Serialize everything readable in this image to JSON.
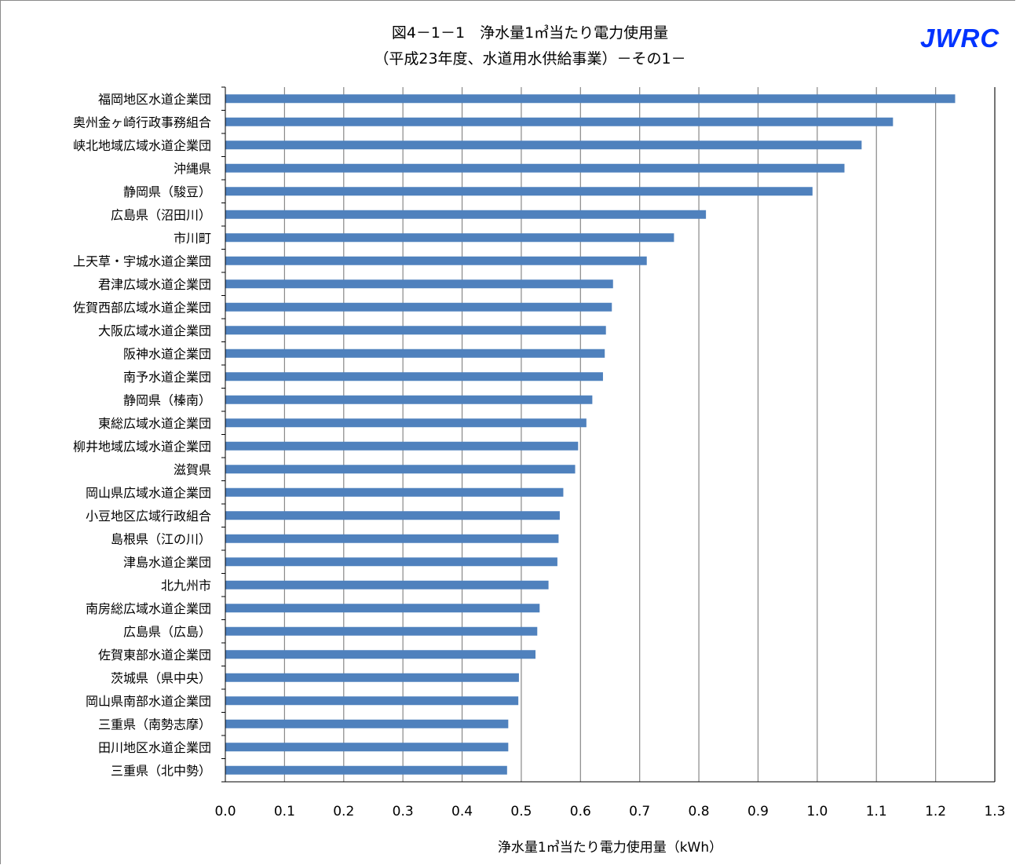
{
  "title_line1": "図4－1－1　浄水量1㎥当たり電力使用量",
  "title_line2": "（平成23年度、水道用水供給事業）－その1－",
  "logo_text": "JWRC",
  "colors": {
    "bar": "#4f81bd",
    "grid": "#888888",
    "logo": "#0033ff"
  },
  "chart_data": {
    "type": "bar",
    "orientation": "horizontal",
    "xlabel": "浄水量1㎥当たり電力使用量（kWh）",
    "ylabel": "",
    "xlim": [
      0,
      1.3
    ],
    "x_ticks": [
      "0.0",
      "0.1",
      "0.2",
      "0.3",
      "0.4",
      "0.5",
      "0.6",
      "0.7",
      "0.8",
      "0.9",
      "1.0",
      "1.1",
      "1.2",
      "1.3"
    ],
    "grid": "vertical",
    "categories": [
      "福岡地区水道企業団",
      "奥州金ヶ崎行政事務組合",
      "峡北地域広域水道企業団",
      "沖縄県",
      "静岡県（駿豆）",
      "広島県（沼田川）",
      "市川町",
      "上天草・宇城水道企業団",
      "君津広域水道企業団",
      "佐賀西部広域水道企業団",
      "大阪広域水道企業団",
      "阪神水道企業団",
      "南予水道企業団",
      "静岡県（榛南）",
      "東総広域水道企業団",
      "柳井地域広域水道企業団",
      "滋賀県",
      "岡山県広域水道企業団",
      "小豆地区広域行政組合",
      "島根県（江の川）",
      "津島水道企業団",
      "北九州市",
      "南房総広域水道企業団",
      "広島県（広島）",
      "佐賀東部水道企業団",
      "茨城県（県中央）",
      "岡山県南部水道企業団",
      "三重県（南勢志摩）",
      "田川地区水道企業団",
      "三重県（北中勢）"
    ],
    "values": [
      1.233,
      1.128,
      1.075,
      1.046,
      0.992,
      0.812,
      0.758,
      0.712,
      0.655,
      0.653,
      0.643,
      0.641,
      0.638,
      0.62,
      0.61,
      0.596,
      0.591,
      0.571,
      0.565,
      0.563,
      0.561,
      0.546,
      0.531,
      0.527,
      0.524,
      0.496,
      0.495,
      0.478,
      0.478,
      0.476
    ]
  }
}
